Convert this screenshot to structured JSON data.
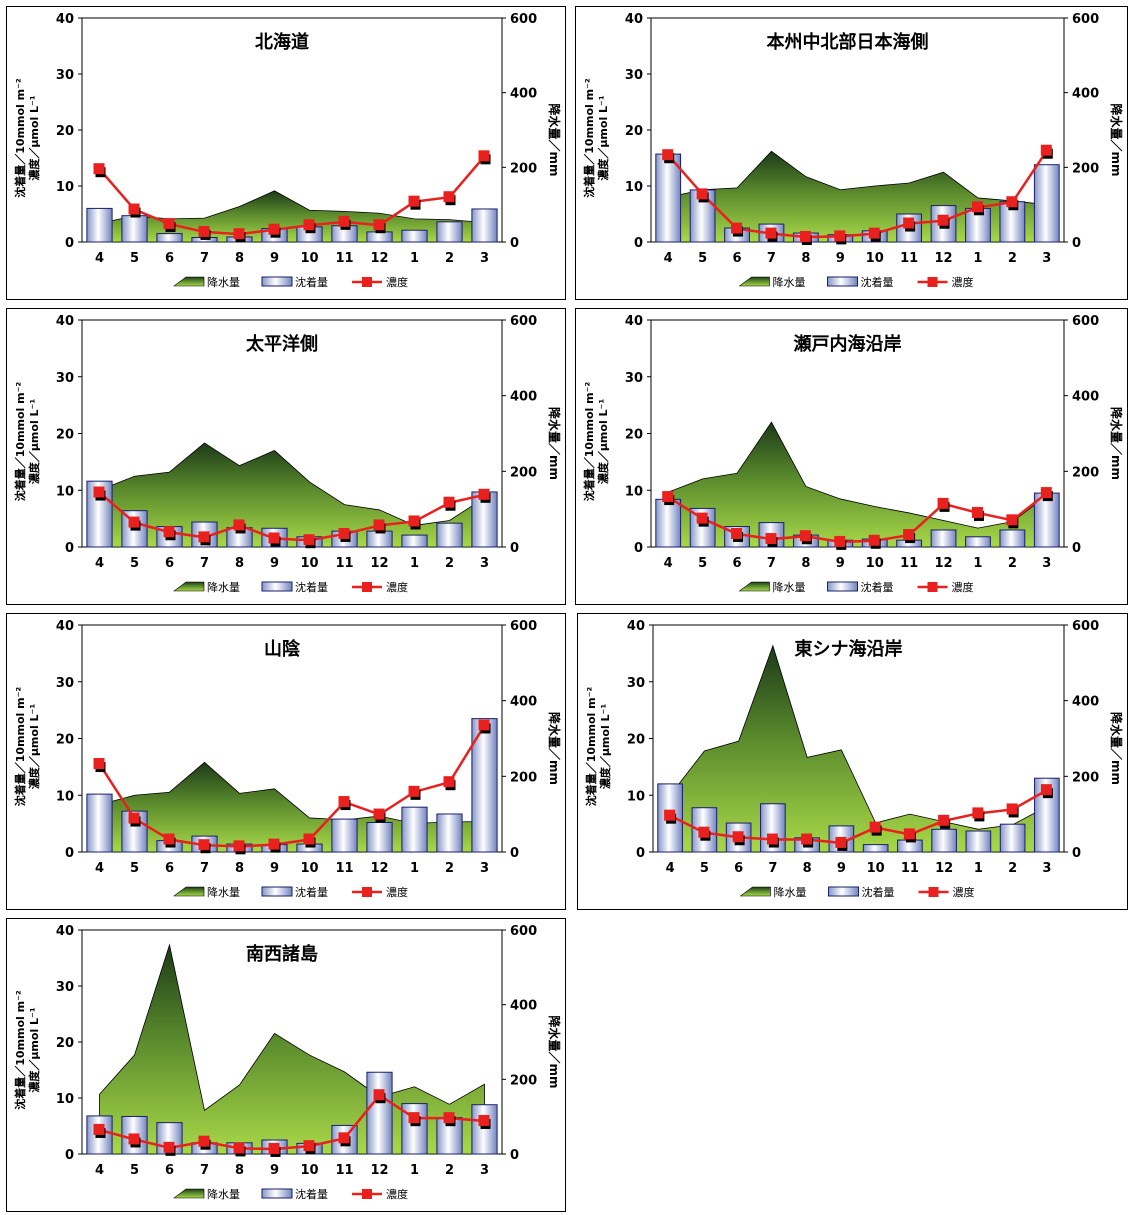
{
  "chart_data": [
    {
      "type": "bar",
      "title": "北海道",
      "categories": [
        "4",
        "5",
        "6",
        "7",
        "8",
        "9",
        "10",
        "11",
        "12",
        "1",
        "2",
        "3"
      ],
      "ylabel": "沈着量／10mmol m⁻²\n濃度／μmol L⁻¹",
      "y2label": "降水量／mm",
      "ylim": [
        0,
        40
      ],
      "y2lim": [
        0,
        600
      ],
      "yticks": [
        "0",
        "10",
        "20",
        "30",
        "40"
      ],
      "y2ticks": [
        "0",
        "200",
        "400",
        "600"
      ],
      "legend": [
        "降水量",
        "沈着量",
        "濃度"
      ],
      "series": [
        {
          "name": "降水量",
          "kind": "area",
          "axis": "right",
          "values": [
            50,
            70,
            62,
            64,
            95,
            137,
            85,
            82,
            77,
            62,
            60,
            52
          ]
        },
        {
          "name": "沈着量",
          "kind": "bar",
          "axis": "left",
          "values": [
            6.0,
            4.7,
            1.5,
            0.8,
            0.9,
            2.4,
            2.7,
            2.9,
            1.8,
            2.1,
            3.6,
            5.9
          ]
        },
        {
          "name": "濃度",
          "kind": "line",
          "axis": "left",
          "values": [
            13.0,
            5.8,
            3.2,
            1.8,
            1.4,
            2.2,
            3.0,
            3.6,
            3.0,
            7.2,
            8.0,
            15.3
          ]
        }
      ]
    },
    {
      "type": "bar",
      "title": "本州中北部日本海側",
      "categories": [
        "4",
        "5",
        "6",
        "7",
        "8",
        "9",
        "10",
        "11",
        "12",
        "1",
        "2",
        "3"
      ],
      "ylabel": "沈着量／10mmol m⁻²\n濃度／μmol L⁻¹",
      "y2label": "降水量／mm",
      "ylim": [
        0,
        40
      ],
      "y2lim": [
        0,
        600
      ],
      "yticks": [
        "0",
        "10",
        "20",
        "30",
        "40"
      ],
      "y2ticks": [
        "0",
        "200",
        "400",
        "600"
      ],
      "legend": [
        "降水量",
        "沈着量",
        "濃度"
      ],
      "series": [
        {
          "name": "降水量",
          "kind": "area",
          "axis": "right",
          "values": [
            120,
            140,
            145,
            243,
            175,
            140,
            150,
            158,
            187,
            118,
            110,
            100
          ]
        },
        {
          "name": "沈着量",
          "kind": "bar",
          "axis": "left",
          "values": [
            15.7,
            9.3,
            2.5,
            3.2,
            1.6,
            1.3,
            2.0,
            5.0,
            6.5,
            6.0,
            7.2,
            13.8
          ]
        },
        {
          "name": "濃度",
          "kind": "line",
          "axis": "left",
          "values": [
            15.5,
            8.5,
            2.4,
            1.5,
            0.9,
            1.0,
            1.5,
            3.3,
            3.8,
            6.2,
            7.1,
            16.3
          ]
        }
      ]
    },
    {
      "type": "bar",
      "title": "太平洋側",
      "categories": [
        "4",
        "5",
        "6",
        "7",
        "8",
        "9",
        "10",
        "11",
        "12",
        "1",
        "2",
        "3"
      ],
      "ylabel": "沈着量／10mmol m⁻²\n濃度／μmol L⁻¹",
      "y2label": "降水量／mm",
      "ylim": [
        0,
        40
      ],
      "y2lim": [
        0,
        600
      ],
      "yticks": [
        "0",
        "10",
        "20",
        "30",
        "40"
      ],
      "y2ticks": [
        "0",
        "200",
        "400",
        "600"
      ],
      "legend": [
        "降水量",
        "沈着量",
        "濃度"
      ],
      "series": [
        {
          "name": "降水量",
          "kind": "area",
          "axis": "right",
          "values": [
            150,
            187,
            198,
            275,
            215,
            255,
            172,
            112,
            98,
            57,
            70,
            130
          ]
        },
        {
          "name": "沈着量",
          "kind": "bar",
          "axis": "left",
          "values": [
            11.6,
            6.4,
            3.6,
            4.4,
            3.4,
            3.3,
            1.8,
            2.8,
            2.8,
            2.1,
            4.2,
            9.7
          ]
        },
        {
          "name": "濃度",
          "kind": "line",
          "axis": "left",
          "values": [
            9.6,
            4.3,
            2.6,
            1.7,
            3.8,
            1.5,
            1.2,
            2.3,
            3.8,
            4.5,
            7.8,
            9.2
          ]
        }
      ]
    },
    {
      "type": "bar",
      "title": "瀬戸内海沿岸",
      "categories": [
        "4",
        "5",
        "6",
        "7",
        "8",
        "9",
        "10",
        "11",
        "12",
        "1",
        "2",
        "3"
      ],
      "ylabel": "沈着量／10mmol m⁻²\n濃度／μmol L⁻¹",
      "y2label": "降水量／mm",
      "ylim": [
        0,
        40
      ],
      "y2lim": [
        0,
        600
      ],
      "yticks": [
        "0",
        "10",
        "20",
        "30",
        "40"
      ],
      "y2ticks": [
        "0",
        "200",
        "400",
        "600"
      ],
      "legend": [
        "降水量",
        "沈着量",
        "濃度"
      ],
      "series": [
        {
          "name": "降水量",
          "kind": "area",
          "axis": "right",
          "values": [
            145,
            180,
            195,
            330,
            160,
            127,
            107,
            90,
            70,
            50,
            67,
            135
          ]
        },
        {
          "name": "沈着量",
          "kind": "bar",
          "axis": "left",
          "values": [
            8.4,
            6.8,
            3.6,
            4.3,
            2.1,
            1.2,
            1.4,
            1.2,
            3.0,
            1.8,
            3.0,
            9.5
          ]
        },
        {
          "name": "濃度",
          "kind": "line",
          "axis": "left",
          "values": [
            8.8,
            5.0,
            2.3,
            1.4,
            1.9,
            0.9,
            1.1,
            2.1,
            7.6,
            6.0,
            4.7,
            9.5
          ]
        }
      ]
    },
    {
      "type": "bar",
      "title": "山陰",
      "categories": [
        "4",
        "5",
        "6",
        "7",
        "8",
        "9",
        "10",
        "11",
        "12",
        "1",
        "2",
        "3"
      ],
      "ylabel": "沈着量／10mmol m⁻²\n濃度／μmol L⁻¹",
      "y2label": "降水量／mm",
      "ylim": [
        0,
        40
      ],
      "y2lim": [
        0,
        600
      ],
      "yticks": [
        "0",
        "10",
        "20",
        "30",
        "40"
      ],
      "y2ticks": [
        "0",
        "200",
        "400",
        "600"
      ],
      "legend": [
        "降水量",
        "沈着量",
        "濃度"
      ],
      "series": [
        {
          "name": "降水量",
          "kind": "area",
          "axis": "right",
          "values": [
            125,
            150,
            158,
            237,
            155,
            167,
            90,
            85,
            95,
            75,
            80,
            80
          ]
        },
        {
          "name": "沈着量",
          "kind": "bar",
          "axis": "left",
          "values": [
            10.2,
            7.2,
            2.0,
            2.8,
            1.4,
            1.3,
            1.4,
            5.8,
            5.2,
            7.9,
            6.7,
            23.5
          ]
        },
        {
          "name": "濃度",
          "kind": "line",
          "axis": "left",
          "values": [
            15.5,
            5.9,
            2.2,
            1.2,
            1.0,
            1.3,
            2.2,
            8.8,
            6.6,
            10.6,
            12.3,
            22.3
          ]
        }
      ]
    },
    {
      "type": "bar",
      "title": "東シナ海沿岸",
      "categories": [
        "4",
        "5",
        "6",
        "7",
        "8",
        "9",
        "10",
        "11",
        "12",
        "1",
        "2",
        "3"
      ],
      "ylabel": "沈着量／10mmol m⁻²\n濃度／μmol L⁻¹",
      "y2label": "降水量／mm",
      "ylim": [
        0,
        40
      ],
      "y2lim": [
        0,
        600
      ],
      "yticks": [
        "0",
        "10",
        "20",
        "30",
        "40"
      ],
      "y2ticks": [
        "0",
        "200",
        "400",
        "600"
      ],
      "legend": [
        "降水量",
        "沈着量",
        "濃度"
      ],
      "series": [
        {
          "name": "降水量",
          "kind": "area",
          "axis": "right",
          "values": [
            150,
            267,
            293,
            545,
            250,
            270,
            77,
            100,
            80,
            60,
            72,
            120
          ]
        },
        {
          "name": "沈着量",
          "kind": "bar",
          "axis": "left",
          "values": [
            12.0,
            7.8,
            5.1,
            8.5,
            2.5,
            4.6,
            1.3,
            2.1,
            4.0,
            3.7,
            4.9,
            13.0
          ]
        },
        {
          "name": "濃度",
          "kind": "line",
          "axis": "left",
          "values": [
            6.4,
            3.4,
            2.6,
            2.2,
            2.2,
            1.6,
            4.3,
            3.1,
            5.5,
            6.8,
            7.5,
            10.9
          ]
        }
      ]
    },
    {
      "type": "bar",
      "title": "南西諸島",
      "categories": [
        "4",
        "5",
        "6",
        "7",
        "8",
        "9",
        "10",
        "11",
        "12",
        "1",
        "2",
        "3"
      ],
      "ylabel": "沈着量／10mmol m⁻²\n濃度／μmol L⁻¹",
      "y2label": "降水量／mm",
      "ylim": [
        0,
        40
      ],
      "y2lim": [
        0,
        600
      ],
      "yticks": [
        "0",
        "10",
        "20",
        "30",
        "40"
      ],
      "y2ticks": [
        "0",
        "200",
        "400",
        "600"
      ],
      "legend": [
        "降水量",
        "沈着量",
        "濃度"
      ],
      "series": [
        {
          "name": "降水量",
          "kind": "area",
          "axis": "right",
          "values": [
            160,
            265,
            560,
            117,
            185,
            323,
            265,
            220,
            153,
            180,
            133,
            187
          ]
        },
        {
          "name": "沈着量",
          "kind": "bar",
          "axis": "left",
          "values": [
            6.8,
            6.7,
            5.6,
            2.0,
            2.0,
            2.5,
            1.9,
            5.1,
            14.6,
            9.0,
            6.5,
            8.8
          ]
        },
        {
          "name": "濃度",
          "kind": "line",
          "axis": "left",
          "values": [
            4.3,
            2.6,
            1.1,
            2.2,
            1.0,
            0.9,
            1.4,
            2.8,
            10.5,
            6.4,
            6.4,
            5.9
          ]
        }
      ]
    }
  ]
}
